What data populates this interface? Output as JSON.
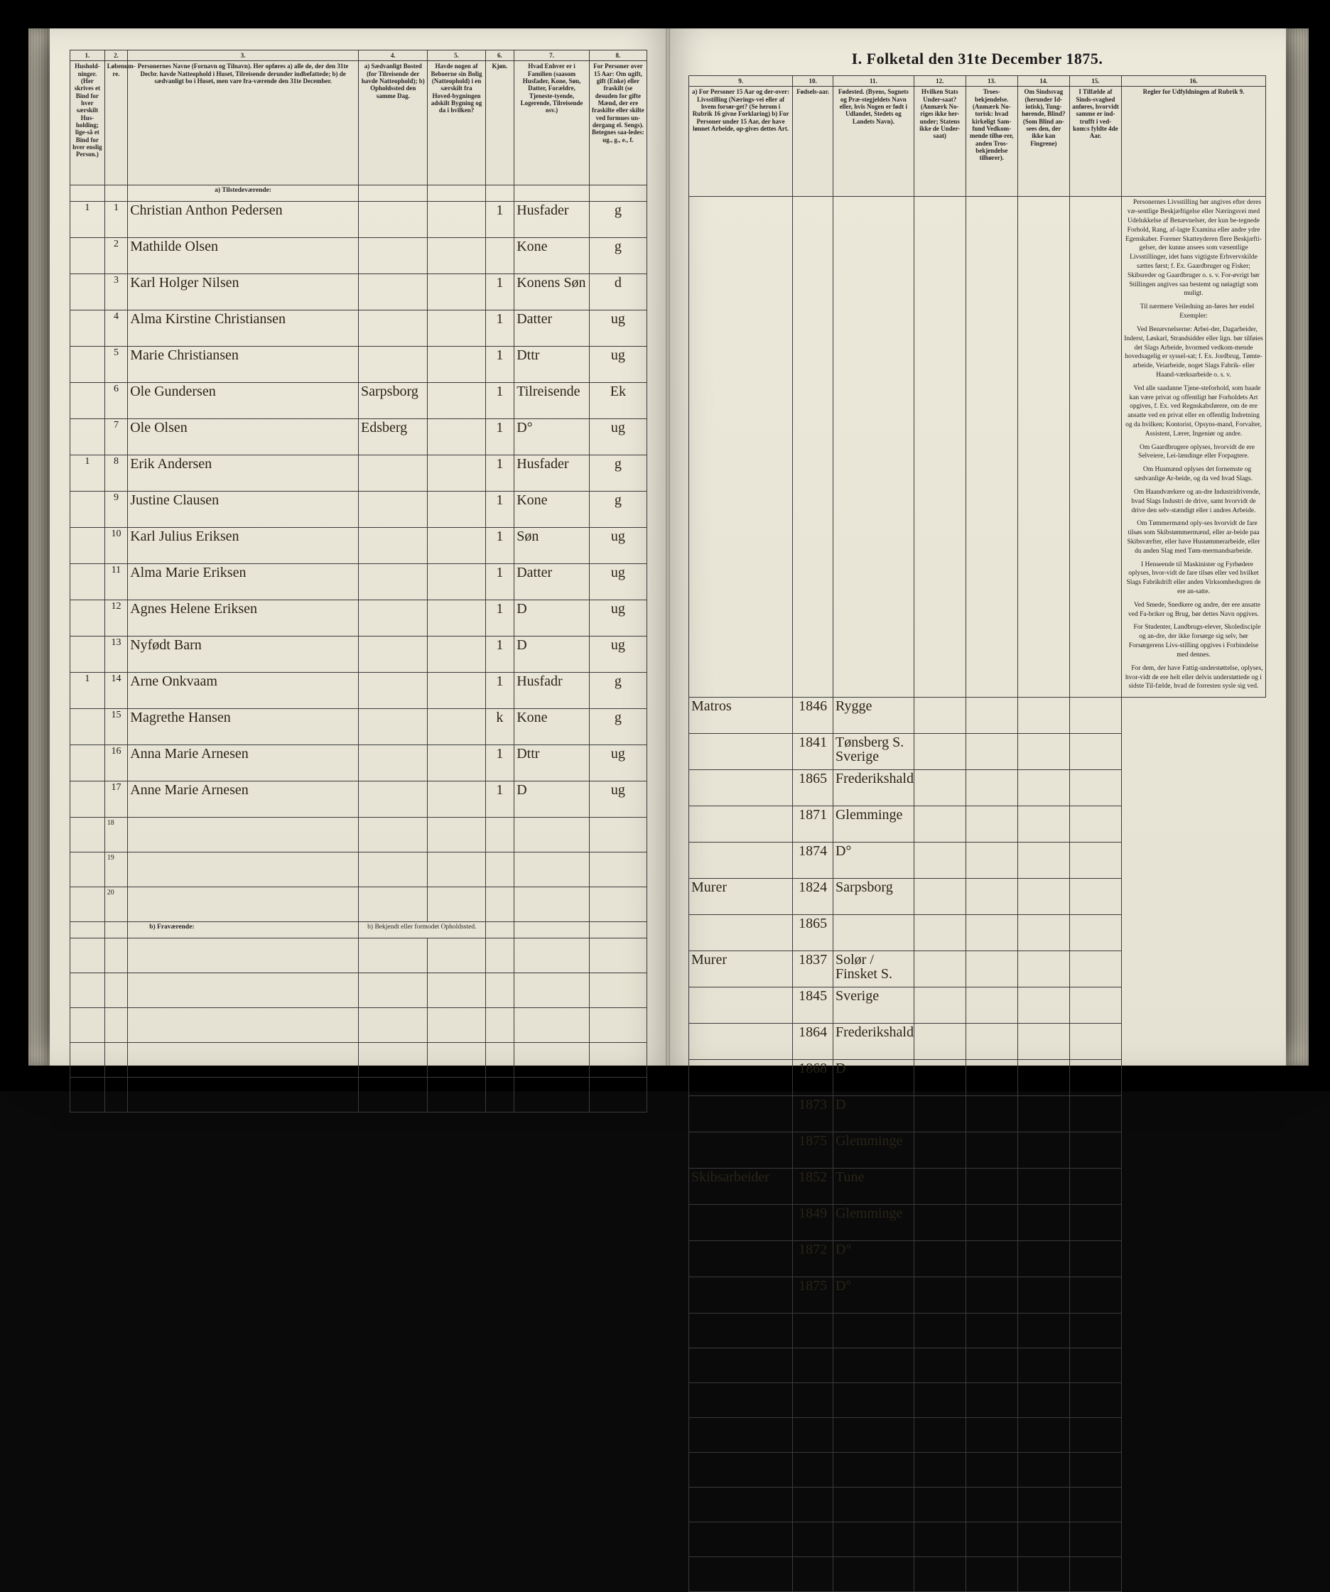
{
  "title": "I. Folketal den 31te December 1875.",
  "left": {
    "colnums": [
      "1.",
      "2.",
      "3.",
      "4.",
      "5.",
      "6.",
      "7.",
      "8."
    ],
    "headers": [
      "Hushold-\nninger.\n(Her skrives et Bind for hver særskilt Hus-holding; lige-så et Bind for hver enslig Person.)",
      "Løbenum-re.",
      "Personernes Navne (Fornavn og Tilnavn).\nHer opføres\na) alle de, der den 31te Decbr. havde Natteophold i Huset, Tilreisende derunder indbefattede;\nb) de sædvanligt bo i Huset, men vare fra-værende den 31te December.",
      "a) Sædvanligt Bosted (for Tilreisende der havde Natteophold);\nb) Opholdssted den samme Dag.",
      "Havde nogen af Beboerne sin Bolig (Natteophold) i en særskilt fra Hoved-bygningen adskilt Bygning og da i hvilken?",
      "Kjøn.",
      "Hvad Enhver er i Familien (saasom Husfader, Kone, Søn, Datter, Forældre, Tjeneste-tyende, Logerende, Tilreisende osv.)",
      "For Personer over 15 Aar: Om ugift, gift (Enke) eller fraskilt (se desuden for gifte Mænd, der ere fraskilte eller skilte ved formues un-dergang el. Sengs). Betegnes saa-ledes: ug., g., e., f."
    ],
    "subhead_a": "a) Tilstedeværende:",
    "subhead_b": "b) Fraværende:",
    "subhead_b_note": "b) Bekjendt eller formodet Opholdssted.",
    "rows": [
      {
        "hh": "1",
        "no": "1",
        "name": "Christian Anthon Pedersen",
        "c4": "",
        "c5": "",
        "sex": "1",
        "rel": "Husfader",
        "ms": "g"
      },
      {
        "hh": "",
        "no": "2",
        "name": "Mathilde Olsen",
        "c4": "",
        "c5": "",
        "sex": "",
        "rel": "Kone",
        "ms": "g"
      },
      {
        "hh": "",
        "no": "3",
        "name": "Karl Holger Nilsen",
        "c4": "",
        "c5": "",
        "sex": "1",
        "rel": "Konens Søn",
        "ms": "d"
      },
      {
        "hh": "",
        "no": "4",
        "name": "Alma Kirstine Christiansen",
        "c4": "",
        "c5": "",
        "sex": "1",
        "rel": "Datter",
        "ms": "ug"
      },
      {
        "hh": "",
        "no": "5",
        "name": "Marie Christiansen",
        "c4": "",
        "c5": "",
        "sex": "1",
        "rel": "Dttr",
        "ms": "ug"
      },
      {
        "hh": "",
        "no": "6",
        "name": "Ole Gundersen",
        "c4": "Sarpsborg",
        "c5": "",
        "sex": "1",
        "rel": "Tilreisende",
        "ms": "Ek"
      },
      {
        "hh": "",
        "no": "7",
        "name": "Ole Olsen",
        "c4": "Edsberg",
        "c5": "",
        "sex": "1",
        "rel": "D°",
        "ms": "ug"
      },
      {
        "hh": "1",
        "no": "8",
        "name": "Erik Andersen",
        "c4": "",
        "c5": "",
        "sex": "1",
        "rel": "Husfader",
        "ms": "g"
      },
      {
        "hh": "",
        "no": "9",
        "name": "Justine Clausen",
        "c4": "",
        "c5": "",
        "sex": "1",
        "rel": "Kone",
        "ms": "g"
      },
      {
        "hh": "",
        "no": "10",
        "name": "Karl Julius Eriksen",
        "c4": "",
        "c5": "",
        "sex": "1",
        "rel": "Søn",
        "ms": "ug"
      },
      {
        "hh": "",
        "no": "11",
        "name": "Alma Marie Eriksen",
        "c4": "",
        "c5": "",
        "sex": "1",
        "rel": "Datter",
        "ms": "ug"
      },
      {
        "hh": "",
        "no": "12",
        "name": "Agnes Helene Eriksen",
        "c4": "",
        "c5": "",
        "sex": "1",
        "rel": "D",
        "ms": "ug"
      },
      {
        "hh": "",
        "no": "13",
        "name": "Nyfødt Barn",
        "c4": "",
        "c5": "",
        "sex": "1",
        "rel": "D",
        "ms": "ug"
      },
      {
        "hh": "1",
        "no": "14",
        "name": "Arne Onkvaam",
        "c4": "",
        "c5": "",
        "sex": "1",
        "rel": "Husfadr",
        "ms": "g"
      },
      {
        "hh": "",
        "no": "15",
        "name": "Magrethe Hansen",
        "c4": "",
        "c5": "",
        "sex": "k",
        "rel": "Kone",
        "ms": "g"
      },
      {
        "hh": "",
        "no": "16",
        "name": "Anna Marie Arnesen",
        "c4": "",
        "c5": "",
        "sex": "1",
        "rel": "Dttr",
        "ms": "ug"
      },
      {
        "hh": "",
        "no": "17",
        "name": "Anne Marie Arnesen",
        "c4": "",
        "c5": "",
        "sex": "1",
        "rel": "D",
        "ms": "ug"
      }
    ],
    "empty_rows": [
      "18",
      "19",
      "20"
    ]
  },
  "right": {
    "colnums": [
      "9.",
      "10.",
      "11.",
      "12.",
      "13.",
      "14.",
      "15.",
      "16."
    ],
    "headers": [
      "a) For Personer 15 Aar og der-over: Livsstilling (Nærings-vei eller af hvem forsør-get? (Se herom i Rubrik 16 givne Forklaring)\nb) For Personer under 15 Aar, der have lønnet Arbeide, op-gives dettes Art.",
      "Fødsels-aar.",
      "Fødested.\n(Byens, Sognets og Præ-stegjeldets Navn eller, hvis Nogen er født i Udlandet, Stedets og Landets Navn).",
      "Hvilken Stats Under-saat?\n(Anmærk No-riges ikke her-under; Statens ikke de Under-saat)",
      "Troes-bekjendelse.\n(Anmærk No-torisk: hvad kirkeligt Sam-fund Vedkom-mende tilhø-rer, anden Tros-bekjendelse tilhører).",
      "Om Sindssvag (herunder Id-iotisk), Tung-hørende, Blind?\n(Som Blind an-sees den, der ikke kan Fingrene)",
      "I Tilfælde af Sinds-svaghed anføres, hvorvidt samme er ind-trufft i ved-kom:s fyldte 4de Aar.",
      "Regler for Udfyldningen af\nRubrik 9."
    ],
    "rows": [
      {
        "c9": "Matros",
        "c10": "1846",
        "c11": "Rygge",
        "c12": "",
        "c13": "",
        "c14": "",
        "c15": ""
      },
      {
        "c9": "",
        "c10": "1841",
        "c11": "Tønsberg S. Sverige",
        "c12": "",
        "c13": "",
        "c14": "",
        "c15": ""
      },
      {
        "c9": "",
        "c10": "1865",
        "c11": "Frederikshald",
        "c12": "",
        "c13": "",
        "c14": "",
        "c15": ""
      },
      {
        "c9": "",
        "c10": "1871",
        "c11": "Glemminge",
        "c12": "",
        "c13": "",
        "c14": "",
        "c15": ""
      },
      {
        "c9": "",
        "c10": "1874",
        "c11": "D°",
        "c12": "",
        "c13": "",
        "c14": "",
        "c15": ""
      },
      {
        "c9": "Murer",
        "c10": "1824",
        "c11": "Sarpsborg",
        "c12": "",
        "c13": "",
        "c14": "",
        "c15": ""
      },
      {
        "c9": "",
        "c10": "1865",
        "c11": "",
        "c12": "",
        "c13": "",
        "c14": "",
        "c15": ""
      },
      {
        "c9": "Murer",
        "c10": "1837",
        "c11": "Solør / Finsket S.",
        "c12": "",
        "c13": "",
        "c14": "",
        "c15": ""
      },
      {
        "c9": "",
        "c10": "1845",
        "c11": "Sverige",
        "c12": "",
        "c13": "",
        "c14": "",
        "c15": ""
      },
      {
        "c9": "",
        "c10": "1864",
        "c11": "Frederikshald",
        "c12": "",
        "c13": "",
        "c14": "",
        "c15": ""
      },
      {
        "c9": "",
        "c10": "1868",
        "c11": "D",
        "c12": "",
        "c13": "",
        "c14": "",
        "c15": ""
      },
      {
        "c9": "",
        "c10": "1873",
        "c11": "D",
        "c12": "",
        "c13": "",
        "c14": "",
        "c15": ""
      },
      {
        "c9": "",
        "c10": "1875",
        "c11": "Glemminge",
        "c12": "",
        "c13": "",
        "c14": "",
        "c15": ""
      },
      {
        "c9": "Skibsarbeider",
        "c10": "1852",
        "c11": "Tune",
        "c12": "",
        "c13": "",
        "c14": "",
        "c15": ""
      },
      {
        "c9": "",
        "c10": "1849",
        "c11": "Glemminge",
        "c12": "",
        "c13": "",
        "c14": "",
        "c15": ""
      },
      {
        "c9": "",
        "c10": "1872",
        "c11": "D°",
        "c12": "",
        "c13": "",
        "c14": "",
        "c15": ""
      },
      {
        "c9": "",
        "c10": "1875",
        "c11": "D°",
        "c12": "",
        "c13": "",
        "c14": "",
        "c15": ""
      }
    ],
    "rules_paragraphs": [
      "Personernes Livsstilling bør angives efter deres væ-sentlige Beskjæftigelse eller Næringsvei med Udelukkelse af Benævnelser, der kun be-tegnede Forhold, Rang, af-lagte Examina eller andre ydre Egenskaber. Forener Skatteyderen flere Beskjæfti-gelser, der kunne ansees som væsentlige Livsstillinger, idet hans vigtigste Erhvervskilde sættes først; f. Ex. Gaardbruger og Fisker; Skibsreder og Gaardbruger o. s. v. For-øvrigt bør Stillingen angives saa bestemt og nøiagtigt som muligt.",
      "Til nærmere Veiledning an-føres her endel Exempler:",
      "Ved Benævnelserne: Arbei-der, Dagarbeider, Inderst, Løskarl, Strandsidder eller lign. bør tilføies det Slags Arbeide, hvormed vedkom-mende hovedsagelig er syssel-sat; f. Ex. Jordbrug, Tømte-arbeide, Veiarbeide, noget Slags Fabrik- eller Haand-værksarbeide o. s. v.",
      "Ved alle saadanne Tjene-steforhold, som baade kan være privat og offentligt bør Forholdets Art opgives, f. Ex. ved Regnskabsførere, om de ere ansatte ved en privat eller en offentlig Indretning og da hvilken; Kontorist, Opsyns-mand, Forvalter, Assistent, Lærer, Ingeniør og andre.",
      "Om Gaardbrugere oplyses, hvorvidt de ere Selveiere, Lei-lændinge eller Forpagtere.",
      "Om Husmænd oplyses det fornemste og sædvanlige Ar-beide, og da ved hvad Slags.",
      "Om Haandværkere og an-dre Industridrivende, hvad Slags Industri de drive, samt hvorvidt de drive den selv-stændigt eller i andres Arbeide.",
      "Om Tømmermænd oply-ses hvorvidt de fare tilsøs som Skibstømmermænd, eller ar-beide paa Skibsværfter, eller have Hustømmerarbeide, eller du anden Slag med Tøm-mermandsarbeide.",
      "I Henseende til Maskinister og Fyrbødere oplyses, hvor-vidt de fare tilsøs eller ved hvilket Slags Fabrikdrift eller anden Virksomhedsgren de ere an-satte.",
      "Ved Smede, Snedkere og andre, der ere ansatte ved Fa-briker og Brug, bør dettes Navn opgives.",
      "For Studenter, Landbrugs-elever, Skoledisciple og an-dre, der ikke forsørge sig selv, bør Forsørgerens Livs-stilling opgives i Forbindelse med dennes.",
      "For dem, der have Fattig-understøttelse, oplyses, hvor-vidt de ere helt eller delvis understøttede og i sidste Til-fælde, hvad de forresten sysle sig ved."
    ]
  },
  "style": {
    "page_bg": "#e9e5d8",
    "ink": "#1a1a1a",
    "rule": "#3a3a3a",
    "script": "#2a2418"
  }
}
